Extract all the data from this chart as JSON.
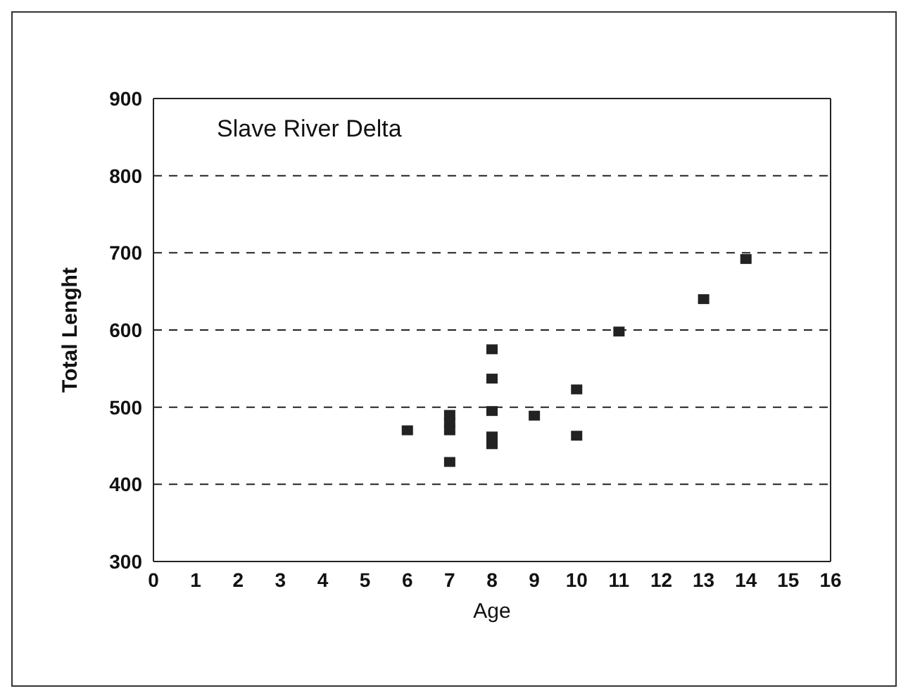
{
  "chart_data": {
    "type": "scatter",
    "title": "Slave River Delta",
    "xlabel": "Age",
    "ylabel": "Total Lenght",
    "x": [
      6,
      7,
      7,
      7,
      7,
      8,
      8,
      8,
      8,
      8,
      9,
      10,
      10,
      11,
      13,
      14
    ],
    "values": [
      470,
      490,
      480,
      470,
      429,
      575,
      537,
      495,
      462,
      452,
      489,
      523,
      463,
      598,
      640,
      692
    ],
    "color": "#222222",
    "marker": "square",
    "xlim": [
      0,
      16
    ],
    "xticks": [
      0,
      1,
      2,
      3,
      4,
      5,
      6,
      7,
      8,
      9,
      10,
      11,
      12,
      13,
      14,
      15,
      16
    ],
    "ylim": [
      300,
      900
    ],
    "yticks": [
      300,
      400,
      500,
      600,
      700,
      800,
      900
    ],
    "grid": "y",
    "line_style": "dashed"
  }
}
